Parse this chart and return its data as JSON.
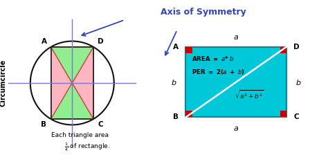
{
  "bg_color": "#ffffff",
  "circle_color": "#111111",
  "rect_left_fill": "#90EE90",
  "tri_pink": "#FFB6C1",
  "tri_green": "#90EE90",
  "tri_edge": "#cc3333",
  "axis_color": "#7777cc",
  "arrow_color": "#3344bb",
  "rect_right_fill": "#00c8d8",
  "rect_right_edge": "#008899",
  "corner_sq_color": "#cc0000",
  "diag_color": "#ffffff",
  "title": "Axis of Symmetry",
  "title_color": "#3344bb",
  "circ_label": "Circumcircle",
  "text1": "Each triangle area",
  "text2_frac": "\\frac{1}{4}",
  "text2_rest": " of rectangle."
}
